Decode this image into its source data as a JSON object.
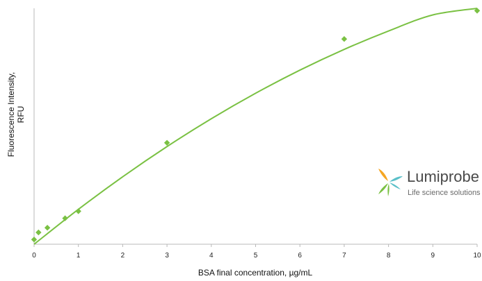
{
  "chart_data": {
    "type": "scatter",
    "xlabel": "BSA final concentration,  µg/mL",
    "ylabel_lines": [
      "Fluorescence Intensity,",
      "RFU"
    ],
    "xlim": [
      0,
      10
    ],
    "ylim": [
      0,
      1
    ],
    "xticks": [
      "0",
      "1",
      "2",
      "3",
      "4",
      "5",
      "6",
      "7",
      "8",
      "9",
      "10"
    ],
    "grid": false,
    "legend": "none",
    "series": [
      {
        "type": "scatter",
        "color": "#7ac143",
        "marker": "diamond",
        "points": [
          {
            "x": 0,
            "y": 0.02
          },
          {
            "x": 0.1,
            "y": 0.05
          },
          {
            "x": 0.3,
            "y": 0.07
          },
          {
            "x": 0.7,
            "y": 0.11
          },
          {
            "x": 1,
            "y": 0.14
          },
          {
            "x": 3,
            "y": 0.43
          },
          {
            "x": 7,
            "y": 0.87
          },
          {
            "x": 10,
            "y": 0.99
          }
        ]
      },
      {
        "type": "line",
        "color": "#7ac143",
        "trendline": "polynomial",
        "points": [
          {
            "x": 0,
            "y": 0.0
          },
          {
            "x": 1,
            "y": 0.148
          },
          {
            "x": 2,
            "y": 0.286
          },
          {
            "x": 3,
            "y": 0.414
          },
          {
            "x": 4,
            "y": 0.532
          },
          {
            "x": 5,
            "y": 0.64
          },
          {
            "x": 6,
            "y": 0.738
          },
          {
            "x": 7,
            "y": 0.826
          },
          {
            "x": 8,
            "y": 0.904
          },
          {
            "x": 9,
            "y": 0.972
          },
          {
            "x": 10,
            "y": 1.0
          }
        ]
      }
    ]
  },
  "logo": {
    "name": "Lumiprobe",
    "tagline": "Life science solutions",
    "colors": {
      "orange": "#f5a623",
      "teal": "#5bc0c9",
      "green": "#7ac143",
      "text": "#4a4a4a"
    }
  }
}
